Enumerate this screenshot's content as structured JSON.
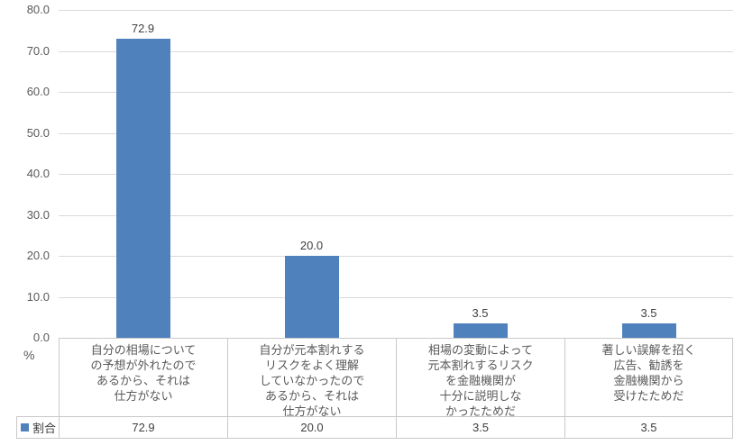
{
  "chart_data": {
    "type": "bar",
    "title": "",
    "unit_label": "%",
    "series_name": "割合",
    "categories": [
      "自分の相場について\nの予想が外れたので\nあるから、それは\n仕方がない",
      "自分が元本割れする\nリスクをよく理解\nしていなかったので\nあるから、それは\n仕方がない",
      "相場の変動によって\n元本割れするリスク\nを金融機関が\n十分に説明しな\nかったためだ",
      "著しい誤解を招く\n広告、勧誘を\n金融機関から\n受けたためだ"
    ],
    "values": [
      72.9,
      20.0,
      3.5,
      3.5
    ],
    "data_labels": [
      "72.9",
      "20.0",
      "3.5",
      "3.5"
    ],
    "table_values": [
      "72.9",
      "20.0",
      "3.5",
      "3.5"
    ],
    "y_ticks": [
      "80.0",
      "70.0",
      "60.0",
      "50.0",
      "40.0",
      "30.0",
      "20.0",
      "10.0",
      "0.0"
    ],
    "ylim": [
      0,
      80
    ],
    "grid": true,
    "legend_position": "bottom-left-data-table",
    "bar_color": "#4f81bd",
    "gridline_color": "#d9d9d9"
  }
}
